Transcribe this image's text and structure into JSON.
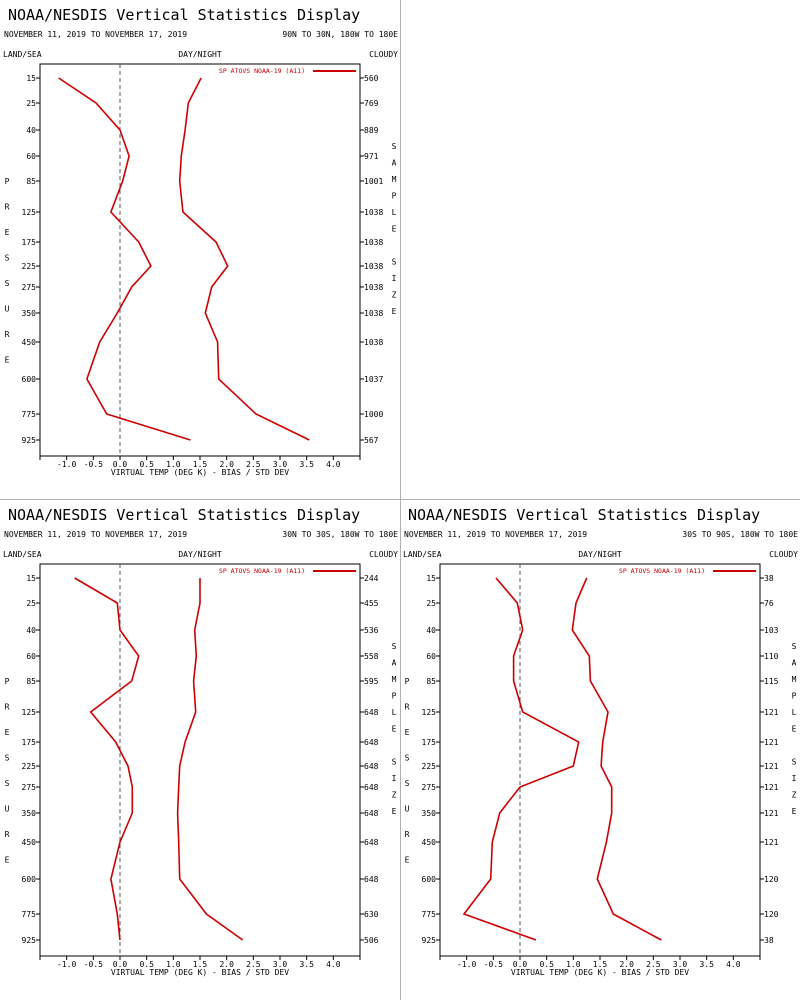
{
  "page_title": "NOAA/NESDIS Vertical Statistics Display",
  "labels": {
    "land_sea": "LAND/SEA",
    "day_night": "DAY/NIGHT",
    "cloudy": "CLOUDY",
    "left_axis": [
      "P",
      "R",
      "E",
      "S",
      "S",
      "U",
      "R",
      "E"
    ],
    "right_axis": [
      "S",
      "A",
      "M",
      "P",
      "L",
      "E",
      "",
      "S",
      "I",
      "Z",
      "E"
    ]
  },
  "chart_data": [
    {
      "type": "line",
      "title": "NOAA/NESDIS Vertical Statistics Display",
      "date_range": "NOVEMBER 11, 2019 TO NOVEMBER 17, 2019",
      "region": "90N TO 30N, 180W TO 180E",
      "xlabel": "VIRTUAL TEMP (DEG K) - BIAS / STD DEV",
      "ylabel": "PRESSURE",
      "y2label": "SAMPLE SIZE",
      "legend": {
        "label": "SP ATOVS NOAA-19 (A11)",
        "position": "top-right",
        "color": "#cc0000"
      },
      "xlim": [
        -1.5,
        4.5
      ],
      "xticks": [
        "-1.0",
        "-0.5",
        "0.0",
        "0.5",
        "1.0",
        "1.5",
        "2.0",
        "2.5",
        "3.0",
        "3.5",
        "4.0"
      ],
      "pressure_levels": [
        "15",
        "25",
        "40",
        "60",
        "85",
        "125",
        "175",
        "225",
        "275",
        "350",
        "450",
        "600",
        "775",
        "925"
      ],
      "sample_size": [
        "560",
        "769",
        "889",
        "971",
        "1001",
        "1038",
        "1038",
        "1038",
        "1038",
        "1038",
        "1038",
        "1037",
        "1000",
        "567"
      ],
      "series": [
        {
          "name": "bias",
          "values": [
            -1.15,
            -0.45,
            0.0,
            0.17,
            0.05,
            -0.17,
            0.35,
            0.58,
            0.22,
            -0.05,
            -0.38,
            -0.62,
            -0.25,
            1.32
          ]
        },
        {
          "name": "std_dev",
          "values": [
            1.52,
            1.28,
            1.22,
            1.15,
            1.12,
            1.18,
            1.8,
            2.02,
            1.72,
            1.6,
            1.83,
            1.85,
            2.55,
            3.55
          ]
        }
      ]
    },
    {
      "type": "line",
      "title": "NOAA/NESDIS Vertical Statistics Display",
      "date_range": "NOVEMBER 11, 2019 TO NOVEMBER 17, 2019",
      "region": "30N TO 30S, 180W TO 180E",
      "xlabel": "VIRTUAL TEMP (DEG K) - BIAS / STD DEV",
      "ylabel": "PRESSURE",
      "y2label": "SAMPLE SIZE",
      "legend": {
        "label": "SP ATOVS NOAA-19 (A11)",
        "position": "top-right",
        "color": "#cc0000"
      },
      "xlim": [
        -1.5,
        4.5
      ],
      "xticks": [
        "-1.0",
        "-0.5",
        "0.0",
        "0.5",
        "1.0",
        "1.5",
        "2.0",
        "2.5",
        "3.0",
        "3.5",
        "4.0"
      ],
      "pressure_levels": [
        "15",
        "25",
        "40",
        "60",
        "85",
        "125",
        "175",
        "225",
        "275",
        "350",
        "450",
        "600",
        "775",
        "925"
      ],
      "sample_size": [
        "244",
        "455",
        "536",
        "558",
        "595",
        "648",
        "648",
        "648",
        "648",
        "648",
        "648",
        "648",
        "630",
        "506"
      ],
      "series": [
        {
          "name": "bias",
          "values": [
            -0.85,
            -0.05,
            0.0,
            0.35,
            0.22,
            -0.55,
            -0.08,
            0.15,
            0.23,
            0.23,
            0.0,
            -0.17,
            -0.05,
            0.0
          ]
        },
        {
          "name": "std_dev",
          "values": [
            1.5,
            1.5,
            1.4,
            1.43,
            1.38,
            1.42,
            1.22,
            1.12,
            1.1,
            1.08,
            1.1,
            1.12,
            1.62,
            2.3
          ]
        }
      ]
    },
    {
      "type": "line",
      "title": "NOAA/NESDIS Vertical Statistics Display",
      "date_range": "NOVEMBER 11, 2019 TO NOVEMBER 17, 2019",
      "region": "30S TO 90S, 180W TO 180E",
      "xlabel": "VIRTUAL TEMP (DEG K) - BIAS / STD DEV",
      "ylabel": "PRESSURE",
      "y2label": "SAMPLE SIZE",
      "legend": {
        "label": "SP ATOVS NOAA-19 (A11)",
        "position": "top-right",
        "color": "#cc0000"
      },
      "xlim": [
        -1.5,
        4.5
      ],
      "xticks": [
        "-1.0",
        "-0.5",
        "0.0",
        "0.5",
        "1.0",
        "1.5",
        "2.0",
        "2.5",
        "3.0",
        "3.5",
        "4.0"
      ],
      "pressure_levels": [
        "15",
        "25",
        "40",
        "60",
        "85",
        "125",
        "175",
        "225",
        "275",
        "350",
        "450",
        "600",
        "775",
        "925"
      ],
      "sample_size": [
        "38",
        "76",
        "103",
        "110",
        "115",
        "121",
        "121",
        "121",
        "121",
        "121",
        "121",
        "120",
        "120",
        "38"
      ],
      "series": [
        {
          "name": "bias",
          "values": [
            -0.45,
            -0.05,
            0.05,
            -0.12,
            -0.12,
            0.05,
            1.1,
            1.0,
            0.0,
            -0.38,
            -0.52,
            -0.55,
            -1.05,
            0.3
          ]
        },
        {
          "name": "std_dev",
          "values": [
            1.25,
            1.05,
            0.98,
            1.3,
            1.32,
            1.65,
            1.55,
            1.52,
            1.72,
            1.72,
            1.62,
            1.45,
            1.75,
            2.65
          ]
        }
      ]
    }
  ]
}
